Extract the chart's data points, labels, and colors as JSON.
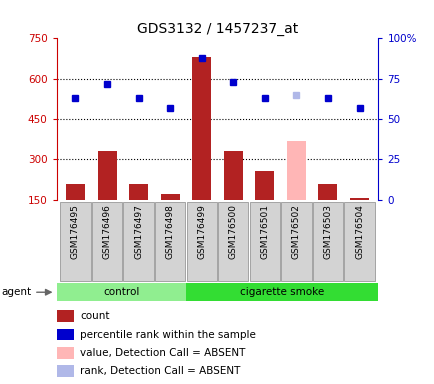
{
  "title": "GDS3132 / 1457237_at",
  "samples": [
    "GSM176495",
    "GSM176496",
    "GSM176497",
    "GSM176498",
    "GSM176499",
    "GSM176500",
    "GSM176501",
    "GSM176502",
    "GSM176503",
    "GSM176504"
  ],
  "counts": [
    210,
    330,
    210,
    170,
    680,
    330,
    255,
    370,
    210,
    155
  ],
  "percentile_ranks": [
    63,
    72,
    63,
    57,
    88,
    73,
    63,
    65,
    63,
    57
  ],
  "detection_call_absent": [
    false,
    false,
    false,
    false,
    false,
    false,
    false,
    true,
    false,
    false
  ],
  "bar_color_normal": "#b22222",
  "bar_color_absent": "#ffb6b6",
  "rank_color_normal": "#0000cd",
  "rank_color_absent": "#b0b8e8",
  "ylim_left": [
    150,
    750
  ],
  "ylim_right": [
    0,
    100
  ],
  "yticks_left": [
    150,
    300,
    450,
    600,
    750
  ],
  "yticks_right": [
    0,
    25,
    50,
    75,
    100
  ],
  "ytick_labels_right": [
    "0",
    "25",
    "50",
    "75",
    "100%"
  ],
  "hlines": [
    300,
    450,
    600
  ],
  "left_color": "#cc0000",
  "right_color": "#0000cc",
  "legend_items": [
    {
      "label": "count",
      "color": "#b22222"
    },
    {
      "label": "percentile rank within the sample",
      "color": "#0000cd"
    },
    {
      "label": "value, Detection Call = ABSENT",
      "color": "#ffb6b6"
    },
    {
      "label": "rank, Detection Call = ABSENT",
      "color": "#b0b8e8"
    }
  ]
}
